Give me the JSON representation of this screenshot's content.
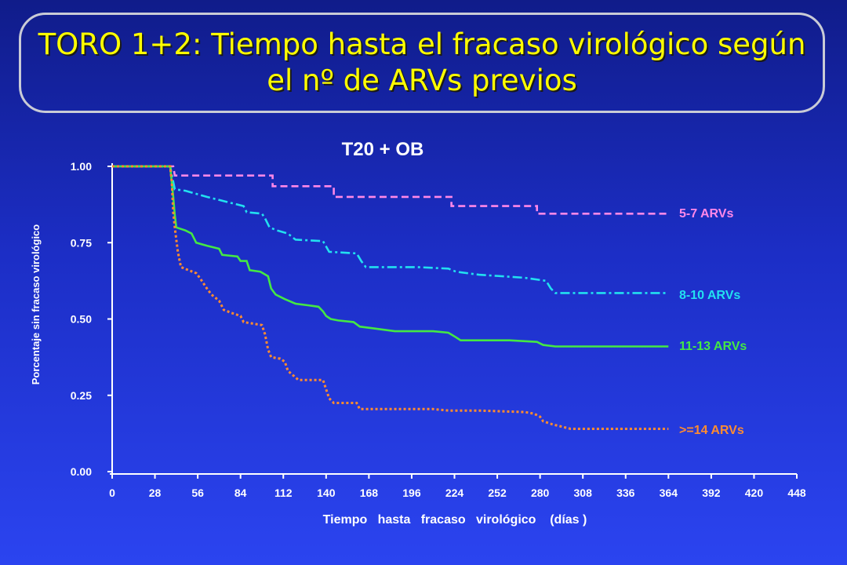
{
  "title": {
    "line1": "TORO 1+2: Tiempo hasta el fracaso virológico según",
    "line2": "el nº de ARVs previos"
  },
  "colors": {
    "background": "#2236d8",
    "title": "#ffff00",
    "axis": "#ffffff",
    "series_5_7": "#ff88e8",
    "series_8_10": "#22e0f0",
    "series_11_13": "#44e844",
    "series_14": "#ff8c30"
  },
  "chart_data": {
    "type": "line",
    "subtitle": "T20 + OB",
    "xlabel": "Tiempo   hasta   fracaso   virológico    (días )",
    "ylabel": "Porcentaje sin fracaso virológico",
    "xlim": [
      0,
      448
    ],
    "ylim": [
      0,
      1
    ],
    "xticks": [
      "0",
      "28",
      "56",
      "84",
      "112",
      "140",
      "168",
      "196",
      "224",
      "252",
      "280",
      "308",
      "336",
      "364",
      "392",
      "420",
      "448"
    ],
    "yticks": [
      "0.00",
      "0.25",
      "0.50",
      "0.75",
      "1.00"
    ],
    "grid": false,
    "legend": "inline labels at right end of each curve",
    "series": [
      {
        "name": "5-7 ARVs",
        "color": "#ff88e8",
        "style": "dashed",
        "points": [
          [
            0,
            1.0
          ],
          [
            40,
            1.0
          ],
          [
            41,
            0.97
          ],
          [
            105,
            0.97
          ],
          [
            105,
            0.935
          ],
          [
            145,
            0.935
          ],
          [
            145,
            0.9
          ],
          [
            222,
            0.9
          ],
          [
            222,
            0.87
          ],
          [
            278,
            0.87
          ],
          [
            278,
            0.845
          ],
          [
            364,
            0.845
          ]
        ]
      },
      {
        "name": "8-10 ARVs",
        "color": "#22e0f0",
        "style": "dashdot",
        "points": [
          [
            0,
            1.0
          ],
          [
            38,
            1.0
          ],
          [
            40,
            0.95
          ],
          [
            41,
            0.925
          ],
          [
            48,
            0.92
          ],
          [
            55,
            0.91
          ],
          [
            62,
            0.9
          ],
          [
            70,
            0.89
          ],
          [
            78,
            0.88
          ],
          [
            86,
            0.87
          ],
          [
            88,
            0.85
          ],
          [
            98,
            0.845
          ],
          [
            100,
            0.83
          ],
          [
            103,
            0.8
          ],
          [
            108,
            0.79
          ],
          [
            115,
            0.78
          ],
          [
            120,
            0.76
          ],
          [
            138,
            0.755
          ],
          [
            142,
            0.72
          ],
          [
            160,
            0.715
          ],
          [
            163,
            0.69
          ],
          [
            166,
            0.67
          ],
          [
            200,
            0.67
          ],
          [
            220,
            0.665
          ],
          [
            225,
            0.655
          ],
          [
            240,
            0.645
          ],
          [
            255,
            0.64
          ],
          [
            270,
            0.635
          ],
          [
            284,
            0.625
          ],
          [
            287,
            0.6
          ],
          [
            290,
            0.585
          ],
          [
            364,
            0.585
          ]
        ]
      },
      {
        "name": "11-13 ARVs",
        "color": "#44e844",
        "style": "solid",
        "points": [
          [
            0,
            1.0
          ],
          [
            38,
            1.0
          ],
          [
            40,
            0.9
          ],
          [
            41,
            0.84
          ],
          [
            42,
            0.8
          ],
          [
            48,
            0.79
          ],
          [
            52,
            0.78
          ],
          [
            55,
            0.75
          ],
          [
            62,
            0.74
          ],
          [
            70,
            0.73
          ],
          [
            72,
            0.71
          ],
          [
            82,
            0.705
          ],
          [
            84,
            0.69
          ],
          [
            88,
            0.69
          ],
          [
            90,
            0.66
          ],
          [
            97,
            0.655
          ],
          [
            102,
            0.64
          ],
          [
            104,
            0.6
          ],
          [
            107,
            0.58
          ],
          [
            113,
            0.565
          ],
          [
            120,
            0.55
          ],
          [
            128,
            0.545
          ],
          [
            135,
            0.54
          ],
          [
            138,
            0.525
          ],
          [
            140,
            0.51
          ],
          [
            143,
            0.5
          ],
          [
            148,
            0.495
          ],
          [
            158,
            0.49
          ],
          [
            162,
            0.475
          ],
          [
            170,
            0.47
          ],
          [
            185,
            0.46
          ],
          [
            210,
            0.46
          ],
          [
            220,
            0.455
          ],
          [
            225,
            0.44
          ],
          [
            228,
            0.43
          ],
          [
            260,
            0.43
          ],
          [
            278,
            0.425
          ],
          [
            282,
            0.415
          ],
          [
            290,
            0.41
          ],
          [
            364,
            0.41
          ]
        ]
      },
      {
        "name": ">=14 ARVs",
        "color": "#ff8c30",
        "style": "dotted",
        "points": [
          [
            0,
            1.0
          ],
          [
            38,
            1.0
          ],
          [
            39,
            0.95
          ],
          [
            40,
            0.85
          ],
          [
            41,
            0.8
          ],
          [
            42,
            0.76
          ],
          [
            43,
            0.72
          ],
          [
            45,
            0.67
          ],
          [
            50,
            0.66
          ],
          [
            55,
            0.65
          ],
          [
            58,
            0.63
          ],
          [
            62,
            0.6
          ],
          [
            65,
            0.58
          ],
          [
            70,
            0.56
          ],
          [
            73,
            0.53
          ],
          [
            78,
            0.52
          ],
          [
            84,
            0.51
          ],
          [
            86,
            0.49
          ],
          [
            98,
            0.48
          ],
          [
            100,
            0.45
          ],
          [
            102,
            0.4
          ],
          [
            104,
            0.375
          ],
          [
            110,
            0.37
          ],
          [
            113,
            0.36
          ],
          [
            115,
            0.33
          ],
          [
            122,
            0.3
          ],
          [
            138,
            0.3
          ],
          [
            140,
            0.27
          ],
          [
            142,
            0.24
          ],
          [
            145,
            0.225
          ],
          [
            160,
            0.225
          ],
          [
            162,
            0.205
          ],
          [
            200,
            0.205
          ],
          [
            210,
            0.205
          ],
          [
            220,
            0.2
          ],
          [
            240,
            0.2
          ],
          [
            270,
            0.195
          ],
          [
            276,
            0.19
          ],
          [
            280,
            0.18
          ],
          [
            282,
            0.165
          ],
          [
            288,
            0.155
          ],
          [
            300,
            0.14
          ],
          [
            364,
            0.14
          ]
        ]
      }
    ]
  }
}
